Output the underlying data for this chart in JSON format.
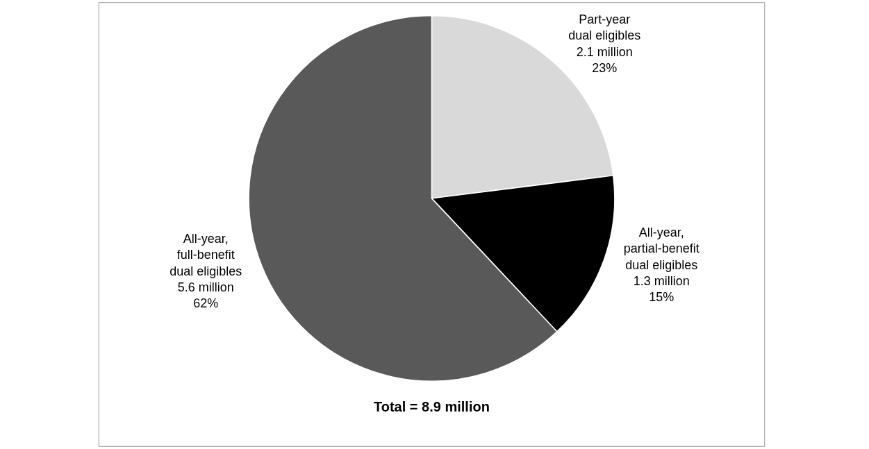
{
  "chart_data": {
    "type": "pie",
    "categories": [
      "Part-year\ndual eligibles\n2.1 million",
      "All-year,\npartial-benefit\ndual eligibles\n1.3 million",
      "All-year,\nfull-benefit\ndual eligibles\n5.6 million"
    ],
    "values": [
      23,
      15,
      62
    ],
    "value_labels": [
      "23%",
      "15%",
      "62%"
    ],
    "colors": [
      "#d9d9d9",
      "#000000",
      "#595959"
    ],
    "annotations": [
      "Total = 8.9 million"
    ],
    "legend": false
  }
}
